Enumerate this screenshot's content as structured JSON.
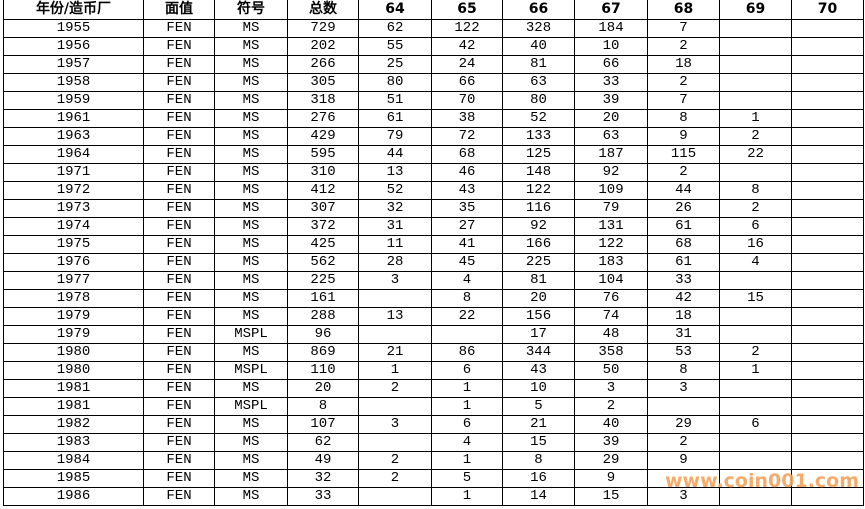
{
  "table": {
    "headers": [
      "年份/造币厂",
      "面值",
      "符号",
      "总数",
      "64",
      "65",
      "66",
      "67",
      "68",
      "69",
      "70"
    ],
    "rows": [
      [
        "1955",
        "FEN",
        "MS",
        "729",
        "62",
        "122",
        "328",
        "184",
        "7",
        "",
        ""
      ],
      [
        "1956",
        "FEN",
        "MS",
        "202",
        "55",
        "42",
        "40",
        "10",
        "2",
        "",
        ""
      ],
      [
        "1957",
        "FEN",
        "MS",
        "266",
        "25",
        "24",
        "81",
        "66",
        "18",
        "",
        ""
      ],
      [
        "1958",
        "FEN",
        "MS",
        "305",
        "80",
        "66",
        "63",
        "33",
        "2",
        "",
        ""
      ],
      [
        "1959",
        "FEN",
        "MS",
        "318",
        "51",
        "70",
        "80",
        "39",
        "7",
        "",
        ""
      ],
      [
        "1961",
        "FEN",
        "MS",
        "276",
        "61",
        "38",
        "52",
        "20",
        "8",
        "1",
        ""
      ],
      [
        "1963",
        "FEN",
        "MS",
        "429",
        "79",
        "72",
        "133",
        "63",
        "9",
        "2",
        ""
      ],
      [
        "1964",
        "FEN",
        "MS",
        "595",
        "44",
        "68",
        "125",
        "187",
        "115",
        "22",
        ""
      ],
      [
        "1971",
        "FEN",
        "MS",
        "310",
        "13",
        "46",
        "148",
        "92",
        "2",
        "",
        ""
      ],
      [
        "1972",
        "FEN",
        "MS",
        "412",
        "52",
        "43",
        "122",
        "109",
        "44",
        "8",
        ""
      ],
      [
        "1973",
        "FEN",
        "MS",
        "307",
        "32",
        "35",
        "116",
        "79",
        "26",
        "2",
        ""
      ],
      [
        "1974",
        "FEN",
        "MS",
        "372",
        "31",
        "27",
        "92",
        "131",
        "61",
        "6",
        ""
      ],
      [
        "1975",
        "FEN",
        "MS",
        "425",
        "11",
        "41",
        "166",
        "122",
        "68",
        "16",
        ""
      ],
      [
        "1976",
        "FEN",
        "MS",
        "562",
        "28",
        "45",
        "225",
        "183",
        "61",
        "4",
        ""
      ],
      [
        "1977",
        "FEN",
        "MS",
        "225",
        "3",
        "4",
        "81",
        "104",
        "33",
        "",
        ""
      ],
      [
        "1978",
        "FEN",
        "MS",
        "161",
        "",
        "8",
        "20",
        "76",
        "42",
        "15",
        ""
      ],
      [
        "1979",
        "FEN",
        "MS",
        "288",
        "13",
        "22",
        "156",
        "74",
        "18",
        "",
        ""
      ],
      [
        "1979",
        "FEN",
        "MSPL",
        "96",
        "",
        "",
        "17",
        "48",
        "31",
        "",
        ""
      ],
      [
        "1980",
        "FEN",
        "MS",
        "869",
        "21",
        "86",
        "344",
        "358",
        "53",
        "2",
        ""
      ],
      [
        "1980",
        "FEN",
        "MSPL",
        "110",
        "1",
        "6",
        "43",
        "50",
        "8",
        "1",
        ""
      ],
      [
        "1981",
        "FEN",
        "MS",
        "20",
        "2",
        "1",
        "10",
        "3",
        "3",
        "",
        ""
      ],
      [
        "1981",
        "FEN",
        "MSPL",
        "8",
        "",
        "1",
        "5",
        "2",
        "",
        "",
        ""
      ],
      [
        "1982",
        "FEN",
        "MS",
        "107",
        "3",
        "6",
        "21",
        "40",
        "29",
        "6",
        ""
      ],
      [
        "1983",
        "FEN",
        "MS",
        "62",
        "",
        "4",
        "15",
        "39",
        "2",
        "",
        ""
      ],
      [
        "1984",
        "FEN",
        "MS",
        "49",
        "2",
        "1",
        "8",
        "29",
        "9",
        "",
        ""
      ],
      [
        "1985",
        "FEN",
        "MS",
        "32",
        "2",
        "5",
        "16",
        "9",
        "",
        "",
        ""
      ],
      [
        "1986",
        "FEN",
        "MS",
        "33",
        "",
        "1",
        "14",
        "15",
        "3",
        "",
        ""
      ]
    ]
  },
  "watermark": "www.coin001.com",
  "colors": {
    "watermark": "#f6a35a",
    "grid": "#000000"
  }
}
